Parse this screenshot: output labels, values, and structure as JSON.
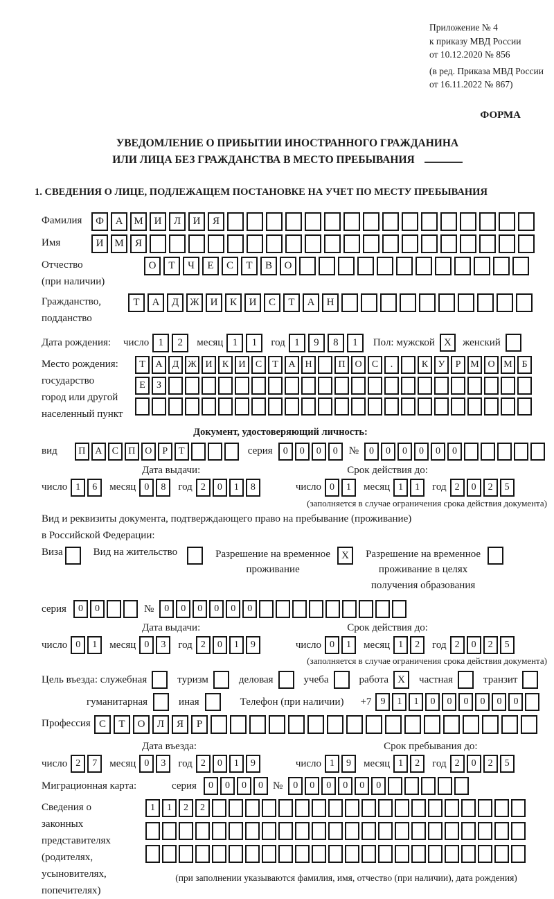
{
  "header": {
    "appendix_lines": [
      "Приложение № 4",
      "к приказу МВД России",
      "от 10.12.2020 № 856"
    ],
    "amendment_lines": [
      "(в ред. Приказа МВД России",
      "от 16.11.2022 № 867)"
    ],
    "form_label": "ФОРМА"
  },
  "title": {
    "line1": "УВЕДОМЛЕНИЕ О ПРИБЫТИИ ИНОСТРАННОГО ГРАЖДАНИНА",
    "line2": "ИЛИ ЛИЦА БЕЗ ГРАЖДАНСТВА В МЕСТО ПРЕБЫВАНИЯ"
  },
  "section1": {
    "heading": "1. СВЕДЕНИЯ О ЛИЦЕ, ПОДЛЕЖАЩЕМ ПОСТАНОВКЕ НА УЧЕТ ПО МЕСТУ ПРЕБЫВАНИЯ"
  },
  "labels": {
    "day": "число",
    "month": "месяц",
    "year": "год",
    "series": "серия",
    "number": "№",
    "doc_type": "вид",
    "issue_date": "Дата выдачи:",
    "expiry_date": "Срок действия до:",
    "expiry_note": "(заполняется в случае ограничения срока действия документа)"
  },
  "fields": {
    "surname": {
      "label": "Фамилия",
      "cells": [
        "Ф",
        "А",
        "М",
        "И",
        "Л",
        "И",
        "Я",
        "",
        "",
        "",
        "",
        "",
        "",
        "",
        "",
        "",
        "",
        "",
        "",
        "",
        "",
        "",
        ""
      ]
    },
    "name": {
      "label": "Имя",
      "cells": [
        "И",
        "М",
        "Я",
        "",
        "",
        "",
        "",
        "",
        "",
        "",
        "",
        "",
        "",
        "",
        "",
        "",
        "",
        "",
        "",
        "",
        "",
        "",
        ""
      ]
    },
    "patronymic": {
      "label1": "Отчество",
      "label2": "(при наличии)",
      "cells": [
        "О",
        "Т",
        "Ч",
        "Е",
        "С",
        "Т",
        "В",
        "О",
        "",
        "",
        "",
        "",
        "",
        "",
        "",
        "",
        "",
        "",
        "",
        ""
      ]
    },
    "citizenship": {
      "label1": "Гражданство,",
      "label2": "подданство",
      "cells": [
        "Т",
        "А",
        "Д",
        "Ж",
        "И",
        "К",
        "И",
        "С",
        "Т",
        "А",
        "Н",
        "",
        "",
        "",
        "",
        "",
        "",
        "",
        "",
        "",
        ""
      ]
    },
    "birth_date": {
      "label": "Дата рождения:",
      "day": [
        "1",
        "2"
      ],
      "month": [
        "1",
        "1"
      ],
      "year": [
        "1",
        "9",
        "8",
        "1"
      ],
      "sex_male_label": "Пол: мужской",
      "sex_male": "X",
      "sex_female_label": "женский",
      "sex_female": ""
    },
    "birth_place": {
      "label_lines": [
        "Место рождения:",
        "государство",
        "город или другой",
        "населенный пункт"
      ],
      "row1": [
        "Т",
        "А",
        "Д",
        "Ж",
        "И",
        "К",
        "И",
        "С",
        "Т",
        "А",
        "Н",
        "",
        "П",
        "О",
        "С",
        ".",
        "",
        "К",
        "У",
        "Р",
        "М",
        "О",
        "М",
        "Б"
      ],
      "row2": [
        "Е",
        "З",
        "",
        "",
        "",
        "",
        "",
        "",
        "",
        "",
        "",
        "",
        "",
        "",
        "",
        "",
        "",
        "",
        "",
        "",
        "",
        "",
        "",
        ""
      ],
      "row3": [
        "",
        "",
        "",
        "",
        "",
        "",
        "",
        "",
        "",
        "",
        "",
        "",
        "",
        "",
        "",
        "",
        "",
        "",
        "",
        "",
        "",
        "",
        "",
        ""
      ]
    },
    "identity_doc": {
      "heading": "Документ, удостоверяющий личность:",
      "type_cells": [
        "П",
        "А",
        "С",
        "П",
        "О",
        "Р",
        "Т",
        "",
        "",
        ""
      ],
      "series_cells": [
        "0",
        "0",
        "0",
        "0"
      ],
      "number_cells": [
        "0",
        "0",
        "0",
        "0",
        "0",
        "0",
        "",
        "",
        "",
        "",
        ""
      ],
      "issue": {
        "day": [
          "1",
          "6"
        ],
        "month": [
          "0",
          "8"
        ],
        "year": [
          "2",
          "0",
          "1",
          "8"
        ]
      },
      "expiry": {
        "day": [
          "0",
          "1"
        ],
        "month": [
          "1",
          "1"
        ],
        "year": [
          "2",
          "0",
          "2",
          "5"
        ]
      }
    },
    "residence_doc": {
      "intro1": "Вид и реквизиты документа, подтверждающего право на пребывание (проживание)",
      "intro2": "в Российской Федерации:",
      "options": [
        {
          "label_lines": [
            "Виза"
          ],
          "value": ""
        },
        {
          "label_lines": [
            "Вид на жительство"
          ],
          "value": ""
        },
        {
          "label_lines": [
            "Разрешение на временное",
            "проживание"
          ],
          "value": "X"
        },
        {
          "label_lines": [
            "Разрешение на временное",
            "проживание в целях",
            "получения образования"
          ],
          "value": ""
        }
      ],
      "series_cells": [
        "0",
        "0",
        "",
        ""
      ],
      "number_cells": [
        "0",
        "0",
        "0",
        "0",
        "0",
        "0",
        "",
        "",
        "",
        "",
        "",
        "",
        "",
        "",
        ""
      ],
      "issue": {
        "day": [
          "0",
          "1"
        ],
        "month": [
          "0",
          "3"
        ],
        "year": [
          "2",
          "0",
          "1",
          "9"
        ]
      },
      "expiry": {
        "day": [
          "0",
          "1"
        ],
        "month": [
          "1",
          "2"
        ],
        "year": [
          "2",
          "0",
          "2",
          "5"
        ]
      }
    },
    "visit_purpose": {
      "intro": "Цель въезда: служебная",
      "options": [
        {
          "label": "туризм",
          "value": ""
        },
        {
          "label": "деловая",
          "value": ""
        },
        {
          "label": "учеба",
          "value": ""
        },
        {
          "label": "работа",
          "value": "X"
        },
        {
          "label": "частная",
          "value": ""
        },
        {
          "label": "транзит",
          "value": ""
        }
      ],
      "first_value": "",
      "options2": [
        {
          "label": "гуманитарная",
          "value": ""
        },
        {
          "label": "иная",
          "value": ""
        }
      ],
      "phone_label": "Телефон (при наличии)",
      "phone_prefix": "+7",
      "phone_cells": [
        "9",
        "1",
        "1",
        "0",
        "0",
        "0",
        "0",
        "0",
        "0",
        ""
      ]
    },
    "profession": {
      "label": "Профессия",
      "cells": [
        "С",
        "Т",
        "О",
        "Л",
        "Я",
        "Р",
        "",
        "",
        "",
        "",
        "",
        "",
        "",
        "",
        "",
        "",
        "",
        "",
        "",
        "",
        "",
        "",
        ""
      ]
    },
    "entry": {
      "date_label": "Дата въезда:",
      "stay_label": "Срок пребывания до:",
      "date": {
        "day": [
          "2",
          "7"
        ],
        "month": [
          "0",
          "3"
        ],
        "year": [
          "2",
          "0",
          "1",
          "9"
        ]
      },
      "stay": {
        "day": [
          "1",
          "9"
        ],
        "month": [
          "1",
          "2"
        ],
        "year": [
          "2",
          "0",
          "2",
          "5"
        ]
      }
    },
    "migration_card": {
      "label": "Миграционная карта:",
      "series_cells": [
        "0",
        "0",
        "0",
        "0"
      ],
      "number_cells": [
        "0",
        "0",
        "0",
        "0",
        "0",
        "0",
        "",
        "",
        "",
        "",
        ""
      ]
    },
    "representatives": {
      "label_lines": [
        "Сведения о",
        "законных",
        "представителях",
        "(родителях,",
        "усыновителях,",
        "попечителях)"
      ],
      "row1": [
        "1",
        "1",
        "2",
        "2",
        "",
        "",
        "",
        "",
        "",
        "",
        "",
        "",
        "",
        "",
        "",
        "",
        "",
        "",
        "",
        "",
        "",
        "",
        ""
      ],
      "row2": [
        "",
        "",
        "",
        "",
        "",
        "",
        "",
        "",
        "",
        "",
        "",
        "",
        "",
        "",
        "",
        "",
        "",
        "",
        "",
        "",
        "",
        "",
        ""
      ],
      "row3": [
        "",
        "",
        "",
        "",
        "",
        "",
        "",
        "",
        "",
        "",
        "",
        "",
        "",
        "",
        "",
        "",
        "",
        "",
        "",
        "",
        "",
        "",
        ""
      ],
      "note": "(при заполнении указываются фамилия, имя, отчество (при наличии), дата рождения)"
    }
  }
}
